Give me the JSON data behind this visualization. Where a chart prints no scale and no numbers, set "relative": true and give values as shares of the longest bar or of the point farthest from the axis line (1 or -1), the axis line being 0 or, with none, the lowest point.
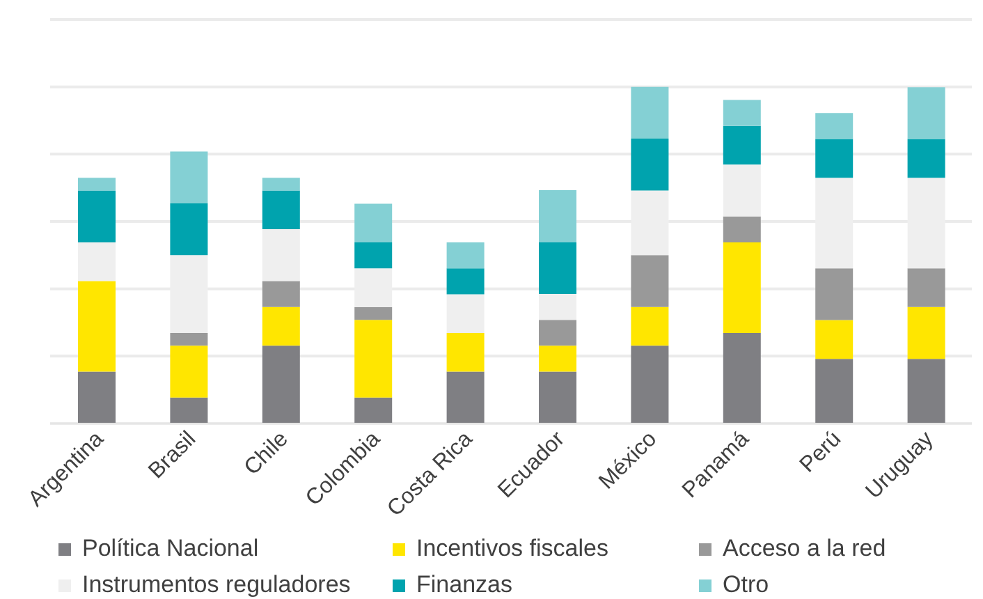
{
  "chart_data": {
    "type": "bar",
    "stacked": true,
    "relative": true,
    "grid": "y",
    "legend": "bottom",
    "categories": [
      "Argentina",
      "Brasil",
      "Chile",
      "Colombia",
      "Costa Rica",
      "Ecuador",
      "México",
      "Panamá",
      "Perú",
      "Uruguay"
    ],
    "series": [
      {
        "name": "Política Nacional",
        "color": "#7f7f83",
        "values": [
          0.154,
          0.077,
          0.231,
          0.077,
          0.154,
          0.154,
          0.231,
          0.269,
          0.192,
          0.192
        ]
      },
      {
        "name": "Incentivos fiscales",
        "color": "#ffe600",
        "values": [
          0.269,
          0.154,
          0.115,
          0.231,
          0.115,
          0.077,
          0.115,
          0.269,
          0.115,
          0.154
        ]
      },
      {
        "name": "Acceso a la red",
        "color": "#999999",
        "values": [
          0,
          0.038,
          0.077,
          0.038,
          0,
          0.077,
          0.154,
          0.077,
          0.154,
          0.115
        ]
      },
      {
        "name": "Instrumentos reguladores",
        "color": "#efefef",
        "values": [
          0.115,
          0.231,
          0.154,
          0.115,
          0.115,
          0.077,
          0.192,
          0.154,
          0.269,
          0.269
        ]
      },
      {
        "name": "Finanzas",
        "color": "#00a3ae",
        "values": [
          0.154,
          0.154,
          0.115,
          0.077,
          0.077,
          0.154,
          0.154,
          0.115,
          0.115,
          0.115
        ]
      },
      {
        "name": "Otro",
        "color": "#84d0d4",
        "values": [
          0.038,
          0.154,
          0.038,
          0.115,
          0.077,
          0.154,
          0.154,
          0.077,
          0.077,
          0.154
        ]
      }
    ]
  }
}
